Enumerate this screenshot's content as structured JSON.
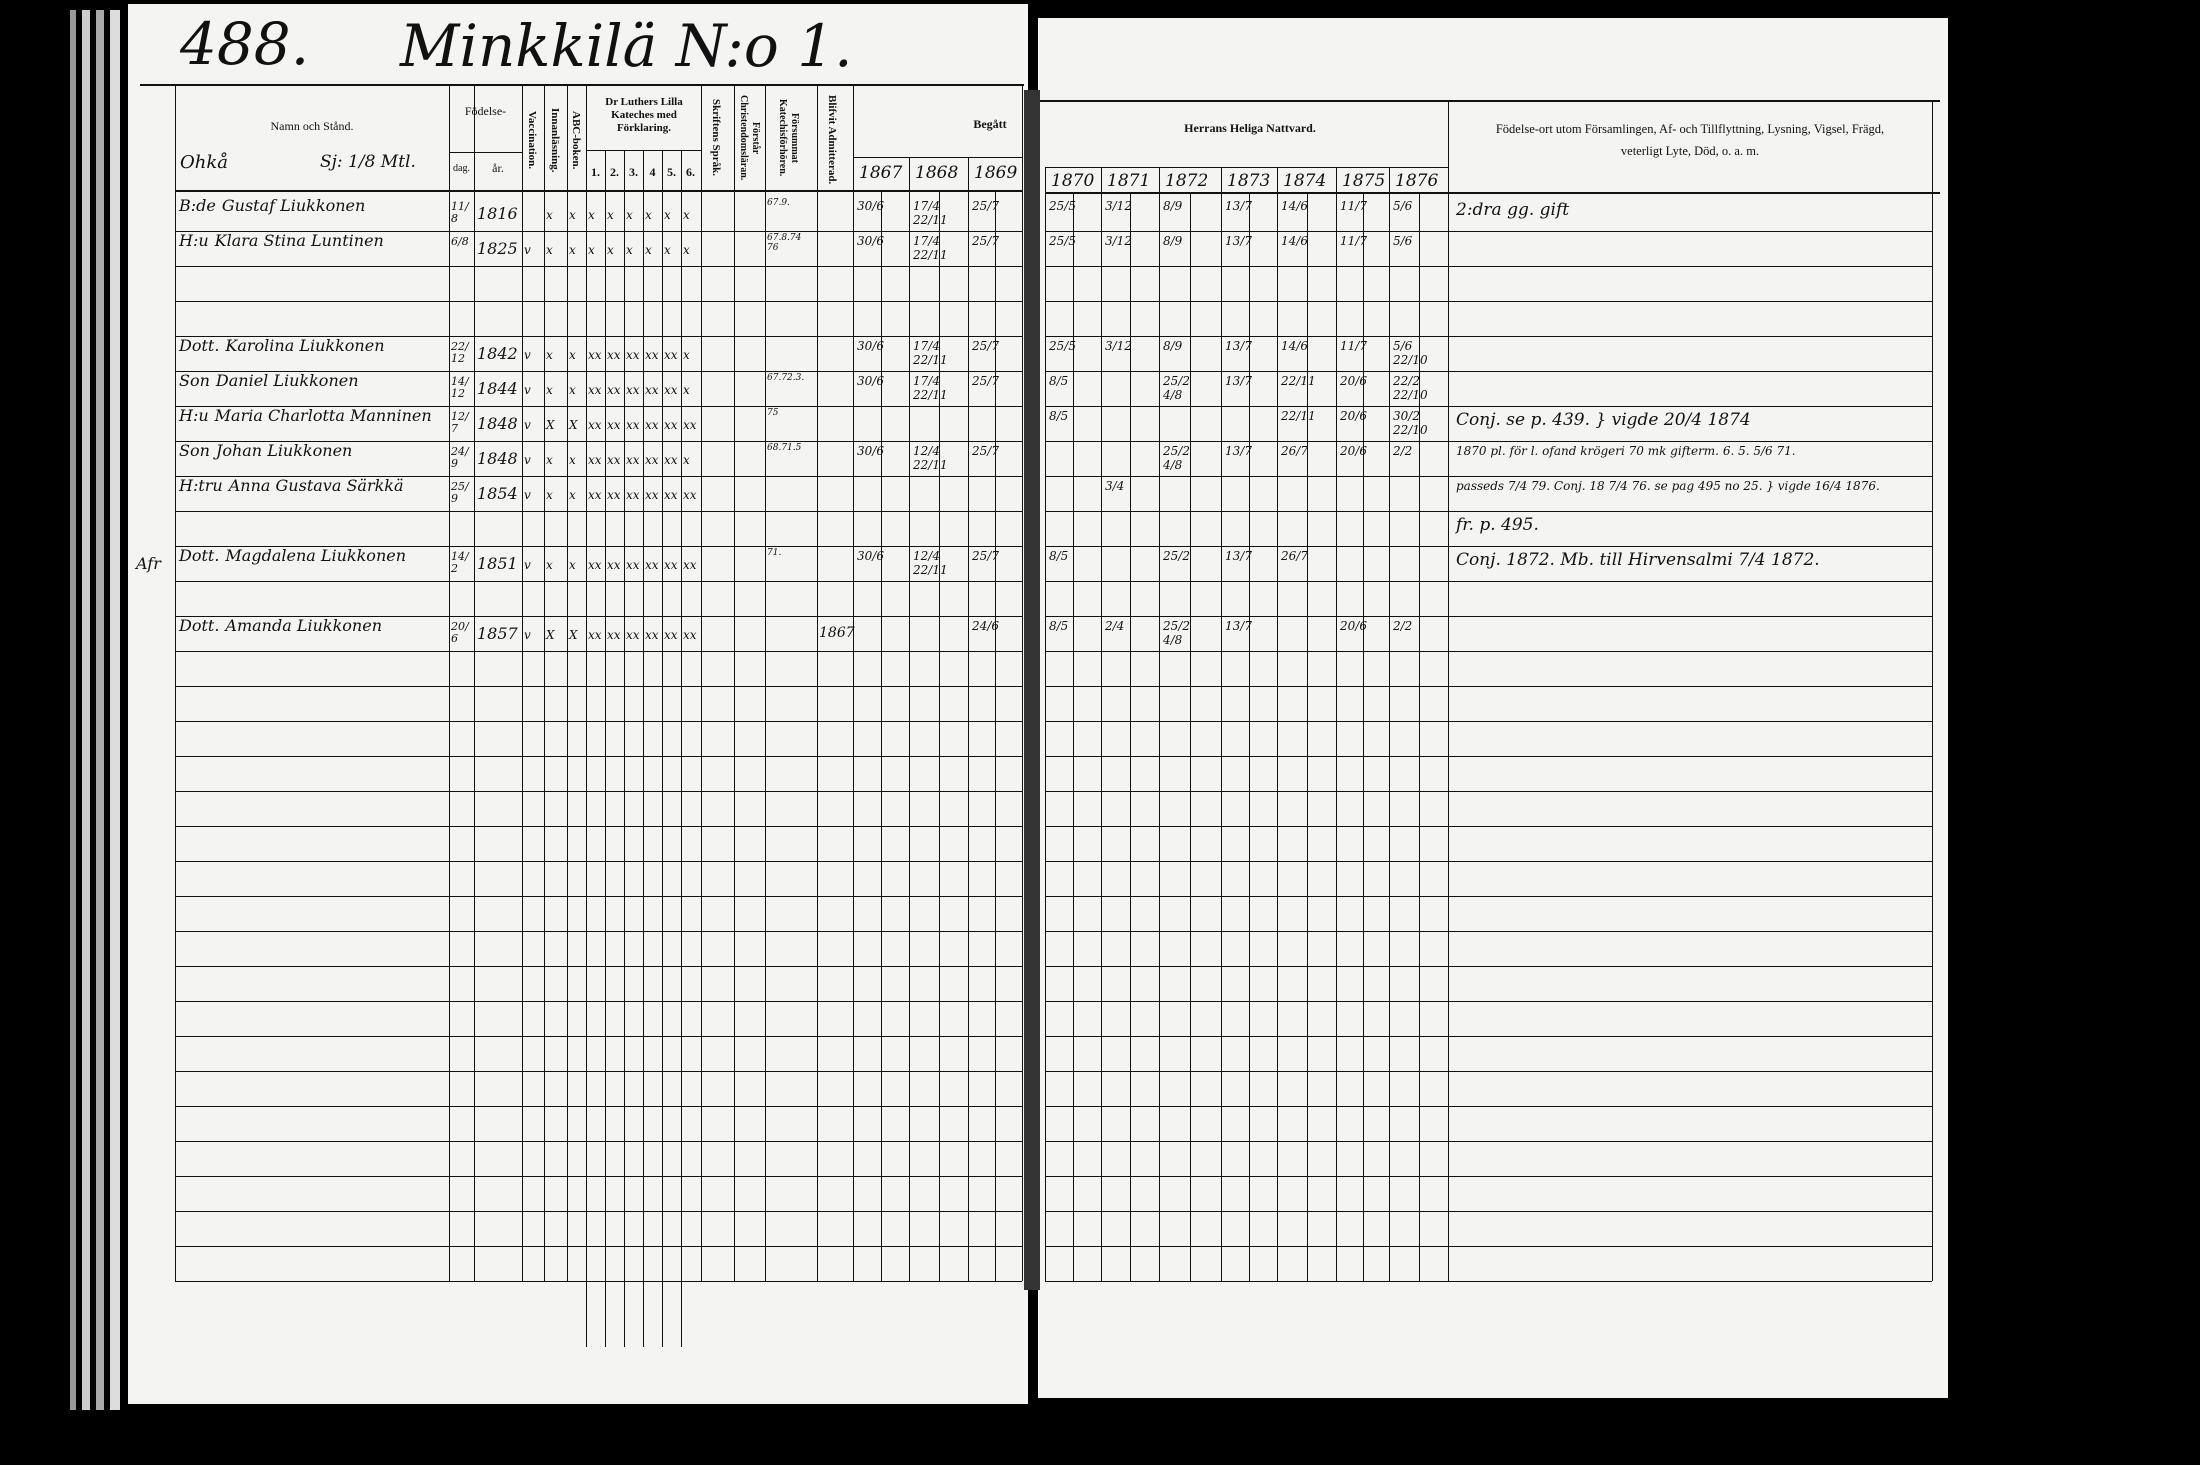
{
  "page": {
    "number": "488.",
    "village": "Minkkilä N:o 1.",
    "parish_label": "Ohkå",
    "holding": "Sj: 1/8 Mtl."
  },
  "headers": {
    "name": "Namn och Stånd.",
    "birth": "Födelse-",
    "birth_day": "dag.",
    "birth_year": "år.",
    "vaccination": "Vaccination.",
    "reading": "Innanläsning.",
    "abc": "ABC-boken.",
    "catechism": "Dr Luthers Lilla Kateches med Förklaring.",
    "catechism_parts": [
      "1.",
      "2.",
      "3.",
      "4",
      "5.",
      "6."
    ],
    "scripture": "Skriftens Språk.",
    "christianity": "Förstår Christendomsläran.",
    "missed": "Försummat Katechisförhören.",
    "admitted": "Blifvit Admitterad.",
    "begatt": "Begått",
    "communion": "Herrans Heliga Nattvard.",
    "remarks": "Födelse-ort utom Församlingen, Af- och Tillflyttning, Lysning, Vigsel, Frägd, veterligt Lyte, Död, o. a. m.",
    "years": [
      "1867",
      "1868",
      "1869",
      "1870",
      "1871",
      "1872",
      "1873",
      "1874",
      "1875",
      "1876"
    ]
  },
  "persons": [
    {
      "row": 0,
      "prefix": "B:de",
      "name": "Gustaf Liukkonen",
      "day": "11/8",
      "year": "1816",
      "marks": [
        "",
        "x",
        "x",
        "x",
        "x",
        "x",
        "x",
        "x",
        "x"
      ],
      "missed": "67.9.",
      "admitted": "",
      "communion": {
        "1867": [
          "30/6"
        ],
        "1868": [
          "17/4",
          "22/11"
        ],
        "1869": [
          "25/7"
        ],
        "1870": [
          "25/5"
        ],
        "1871": [
          "3/12"
        ],
        "1872": [
          "8/9"
        ],
        "1873": [
          "13/7"
        ],
        "1874": [
          "14/6"
        ],
        "1875": [
          "11/7"
        ],
        "1876": [
          "5/6"
        ]
      },
      "remark": "2:dra gg. gift",
      "margin": ""
    },
    {
      "row": 1,
      "prefix": "H:u",
      "name": "Klara Stina Luntinen",
      "day": "6/8",
      "year": "1825",
      "marks": [
        "v",
        "x",
        "x",
        "x",
        "x",
        "x",
        "x",
        "x",
        "x"
      ],
      "missed": "67.8.74 76",
      "admitted": "",
      "communion": {
        "1867": [
          "30/6"
        ],
        "1868": [
          "17/4",
          "22/11"
        ],
        "1869": [
          "25/7"
        ],
        "1870": [
          "25/5"
        ],
        "1871": [
          "3/12"
        ],
        "1872": [
          "8/9"
        ],
        "1873": [
          "13/7"
        ],
        "1874": [
          "14/6"
        ],
        "1875": [
          "11/7"
        ],
        "1876": [
          "5/6"
        ]
      },
      "remark": "",
      "margin": ""
    },
    {
      "row": 4,
      "prefix": "Dott.",
      "name": "Karolina Liukkonen",
      "day": "22/12",
      "year": "1842",
      "marks": [
        "v",
        "x",
        "x",
        "xx",
        "xx",
        "xx",
        "xx",
        "xx",
        "x"
      ],
      "missed": "",
      "admitted": "",
      "communion": {
        "1867": [
          "30/6"
        ],
        "1868": [
          "17/4",
          "22/11"
        ],
        "1869": [
          "25/7"
        ],
        "1870": [
          "25/5"
        ],
        "1871": [
          "3/12"
        ],
        "1872": [
          "8/9"
        ],
        "1873": [
          "13/7"
        ],
        "1874": [
          "14/6"
        ],
        "1875": [
          "11/7"
        ],
        "1876": [
          "5/6",
          "22/10"
        ]
      },
      "remark": "",
      "margin": ""
    },
    {
      "row": 5,
      "prefix": "Son",
      "name": "Daniel Liukkonen",
      "day": "14/12",
      "year": "1844",
      "marks": [
        "v",
        "x",
        "x",
        "xx",
        "xx",
        "xx",
        "xx",
        "xx",
        "x"
      ],
      "missed": "67.72.3.",
      "admitted": "",
      "communion": {
        "1867": [
          "30/6"
        ],
        "1868": [
          "17/4",
          "22/11"
        ],
        "1869": [
          "25/7"
        ],
        "1870": [
          "8/5"
        ],
        "1872": [
          "25/2",
          "4/8"
        ],
        "1873": [
          "13/7"
        ],
        "1874": [
          "22/11"
        ],
        "1875": [
          "20/6"
        ],
        "1876": [
          "22/2",
          "22/10"
        ]
      },
      "remark": "",
      "margin": ""
    },
    {
      "row": 6,
      "prefix": "H:u",
      "name": "Maria Charlotta Manninen",
      "day": "12/7",
      "year": "1848",
      "marks": [
        "v",
        "X",
        "X",
        "xx",
        "xx",
        "xx",
        "xx",
        "xx",
        "xx"
      ],
      "missed": "75",
      "admitted": "",
      "communion": {
        "1870": [
          "8/5"
        ],
        "1874": [
          "22/11"
        ],
        "1875": [
          "20/6"
        ],
        "1876": [
          "30/2",
          "22/10"
        ]
      },
      "remark": "Conj. se p. 439. } vigde 20/4 1874",
      "margin": ""
    },
    {
      "row": 7,
      "prefix": "Son",
      "name": "Johan Liukkonen",
      "day": "24/9",
      "year": "1848",
      "marks": [
        "v",
        "x",
        "x",
        "xx",
        "xx",
        "xx",
        "xx",
        "xx",
        "x"
      ],
      "missed": "68.71.5",
      "admitted": "",
      "communion": {
        "1867": [
          "30/6"
        ],
        "1868": [
          "12/4",
          "22/11"
        ],
        "1869": [
          "25/7"
        ],
        "1872": [
          "25/2",
          "4/8"
        ],
        "1873": [
          "13/7"
        ],
        "1874": [
          "26/7"
        ],
        "1875": [
          "20/6"
        ],
        "1876": [
          "2/2"
        ]
      },
      "remark": "1870 pl. för l. ofand krögeri 70 mk gifterm. 6. 5. 5/6 71.",
      "margin": ""
    },
    {
      "row": 8,
      "prefix": "H:tru",
      "name": "Anna Gustava Särkkä",
      "day": "25/9",
      "year": "1854",
      "marks": [
        "v",
        "x",
        "x",
        "xx",
        "xx",
        "xx",
        "xx",
        "xx",
        "xx"
      ],
      "missed": "",
      "admitted": "",
      "communion": {
        "1871": [
          "3/4"
        ]
      },
      "remark": "passeds 7/4 79. Conj. 18 7/4 76. se pag 495 no 25. } vigde 16/4 1876.",
      "margin": ""
    },
    {
      "row": 9,
      "prefix": "",
      "name": "",
      "day": "",
      "year": "",
      "marks": [],
      "missed": "",
      "admitted": "",
      "communion": {},
      "remark": "fr. p. 495.",
      "margin": ""
    },
    {
      "row": 10,
      "prefix": "Dott.",
      "name": "Magdalena Liukkonen",
      "day": "14/2",
      "year": "1851",
      "marks": [
        "v",
        "x",
        "x",
        "xx",
        "xx",
        "xx",
        "xx",
        "xx",
        "xx"
      ],
      "missed": "71.",
      "admitted": "",
      "communion": {
        "1867": [
          "30/6"
        ],
        "1868": [
          "12/4",
          "22/11"
        ],
        "1869": [
          "25/7"
        ],
        "1870": [
          "8/5"
        ],
        "1872": [
          "25/2"
        ],
        "1873": [
          "13/7"
        ],
        "1874": [
          "26/7"
        ]
      },
      "remark": "Conj. 1872. Mb. till Hirvensalmi 7/4 1872.",
      "margin": "Afr"
    },
    {
      "row": 12,
      "prefix": "Dott.",
      "name": "Amanda Liukkonen",
      "day": "20/6",
      "year": "1857",
      "marks": [
        "v",
        "X",
        "X",
        "xx",
        "xx",
        "xx",
        "xx",
        "xx",
        "xx"
      ],
      "missed": "",
      "admitted": "1867",
      "communion": {
        "1869": [
          "24/6"
        ],
        "1870": [
          "8/5"
        ],
        "1871": [
          "2/4"
        ],
        "1872": [
          "25/2",
          "4/8"
        ],
        "1873": [
          "13/7"
        ],
        "1875": [
          "20/6"
        ],
        "1876": [
          "2/2"
        ]
      },
      "remark": "",
      "margin": ""
    }
  ]
}
